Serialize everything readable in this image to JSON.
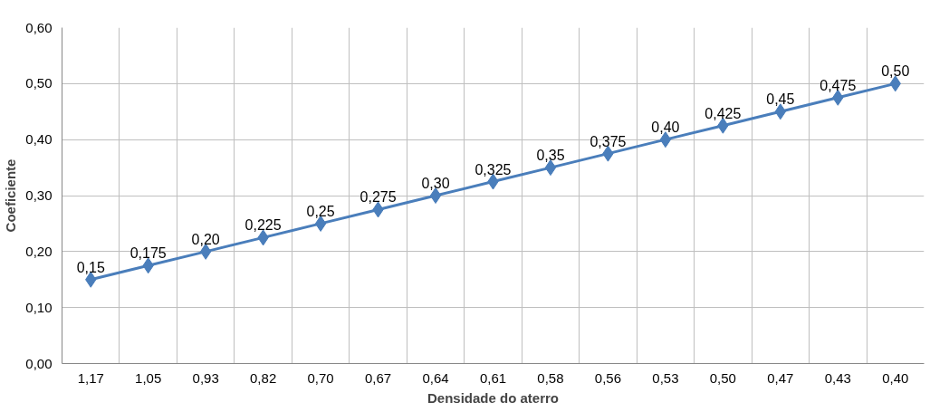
{
  "chart_data": {
    "type": "line",
    "xlabel": "Densidade do aterro",
    "ylabel": "Coeficiente",
    "categories": [
      "1,17",
      "1,05",
      "0,93",
      "0,82",
      "0,70",
      "0,67",
      "0,64",
      "0,61",
      "0,58",
      "0,56",
      "0,53",
      "0,50",
      "0,47",
      "0,43",
      "0,40"
    ],
    "series": [
      {
        "color": "#4a7ebb",
        "values": [
          0.15,
          0.175,
          0.2,
          0.225,
          0.25,
          0.275,
          0.3,
          0.325,
          0.35,
          0.375,
          0.4,
          0.425,
          0.45,
          0.475,
          0.5
        ],
        "value_labels": [
          "0,15",
          "0,175",
          "0,20",
          "0,225",
          "0,25",
          "0,275",
          "0,30",
          "0,325",
          "0,35",
          "0,375",
          "0,40",
          "0,425",
          "0,45",
          "0,475",
          "0,50"
        ]
      }
    ],
    "ylim": [
      0,
      0.6
    ],
    "yticks": [
      {
        "value": 0,
        "label": "0,00"
      },
      {
        "value": 0.1,
        "label": "0,10"
      },
      {
        "value": 0.2,
        "label": "0,20"
      },
      {
        "value": 0.3,
        "label": "0,30"
      },
      {
        "value": 0.4,
        "label": "0,40"
      },
      {
        "value": 0.5,
        "label": "0,50"
      },
      {
        "value": 0.6,
        "label": "0,60"
      }
    ],
    "grid": true,
    "marker": "diamond",
    "line_style": "solid"
  }
}
